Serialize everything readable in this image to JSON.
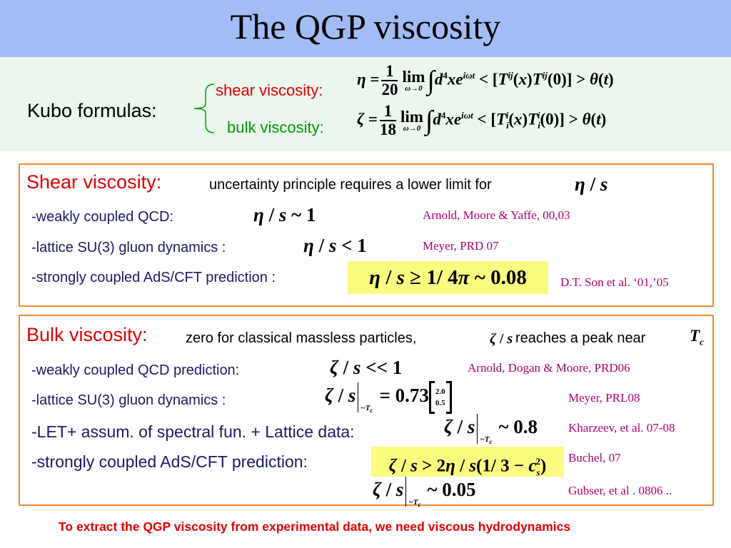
{
  "title": "The QGP viscosity",
  "kubo": {
    "label": "Kubo formulas:",
    "shear_label": "shear viscosity:",
    "bulk_label": "bulk viscosity:"
  },
  "shear": {
    "heading": "Shear viscosity:",
    "intro": "uncertainty principle requires a lower limit for",
    "rows": [
      {
        "label": "-weakly coupled QCD:",
        "ref": "Arnold, Moore & Yaffe,  00,03"
      },
      {
        "label": "-lattice SU(3) gluon dynamics :",
        "ref": "Meyer, PRD 07"
      },
      {
        "label": "-strongly coupled AdS/CFT prediction :",
        "ref": "D.T. Son et al. ‘01,’05"
      }
    ]
  },
  "bulk": {
    "heading": "Bulk viscosity:",
    "intro_a": "zero for classical massless particles,",
    "intro_b": "reaches a peak near",
    "rows": [
      {
        "label": "-weakly coupled QCD prediction:",
        "ref": "Arnold, Dogan & Moore,  PRD06"
      },
      {
        "label": "-lattice SU(3) gluon dynamics :",
        "ref": "Meyer, PRL08"
      },
      {
        "label": "-LET+ assum. of spectral fun. + Lattice data:",
        "ref": "Kharzeev, et al. 07-08"
      },
      {
        "label": "-strongly coupled AdS/CFT prediction:",
        "ref": "Buchel, 07"
      },
      {
        "label": "",
        "ref": "Gubser, et al . 0806 .."
      }
    ]
  },
  "footer": "To extract the QGP viscosity from experimental data, we need viscous hydrodynamics",
  "colors": {
    "title_band": "#a3bcf5",
    "kubo_band": "#eaf6ee",
    "red": "#e00000",
    "box_border": "#f08a35",
    "shear_label": "#e00000",
    "bulk_label": "#009900",
    "ref": "#b0006e",
    "highlight": "#fbfb80"
  }
}
